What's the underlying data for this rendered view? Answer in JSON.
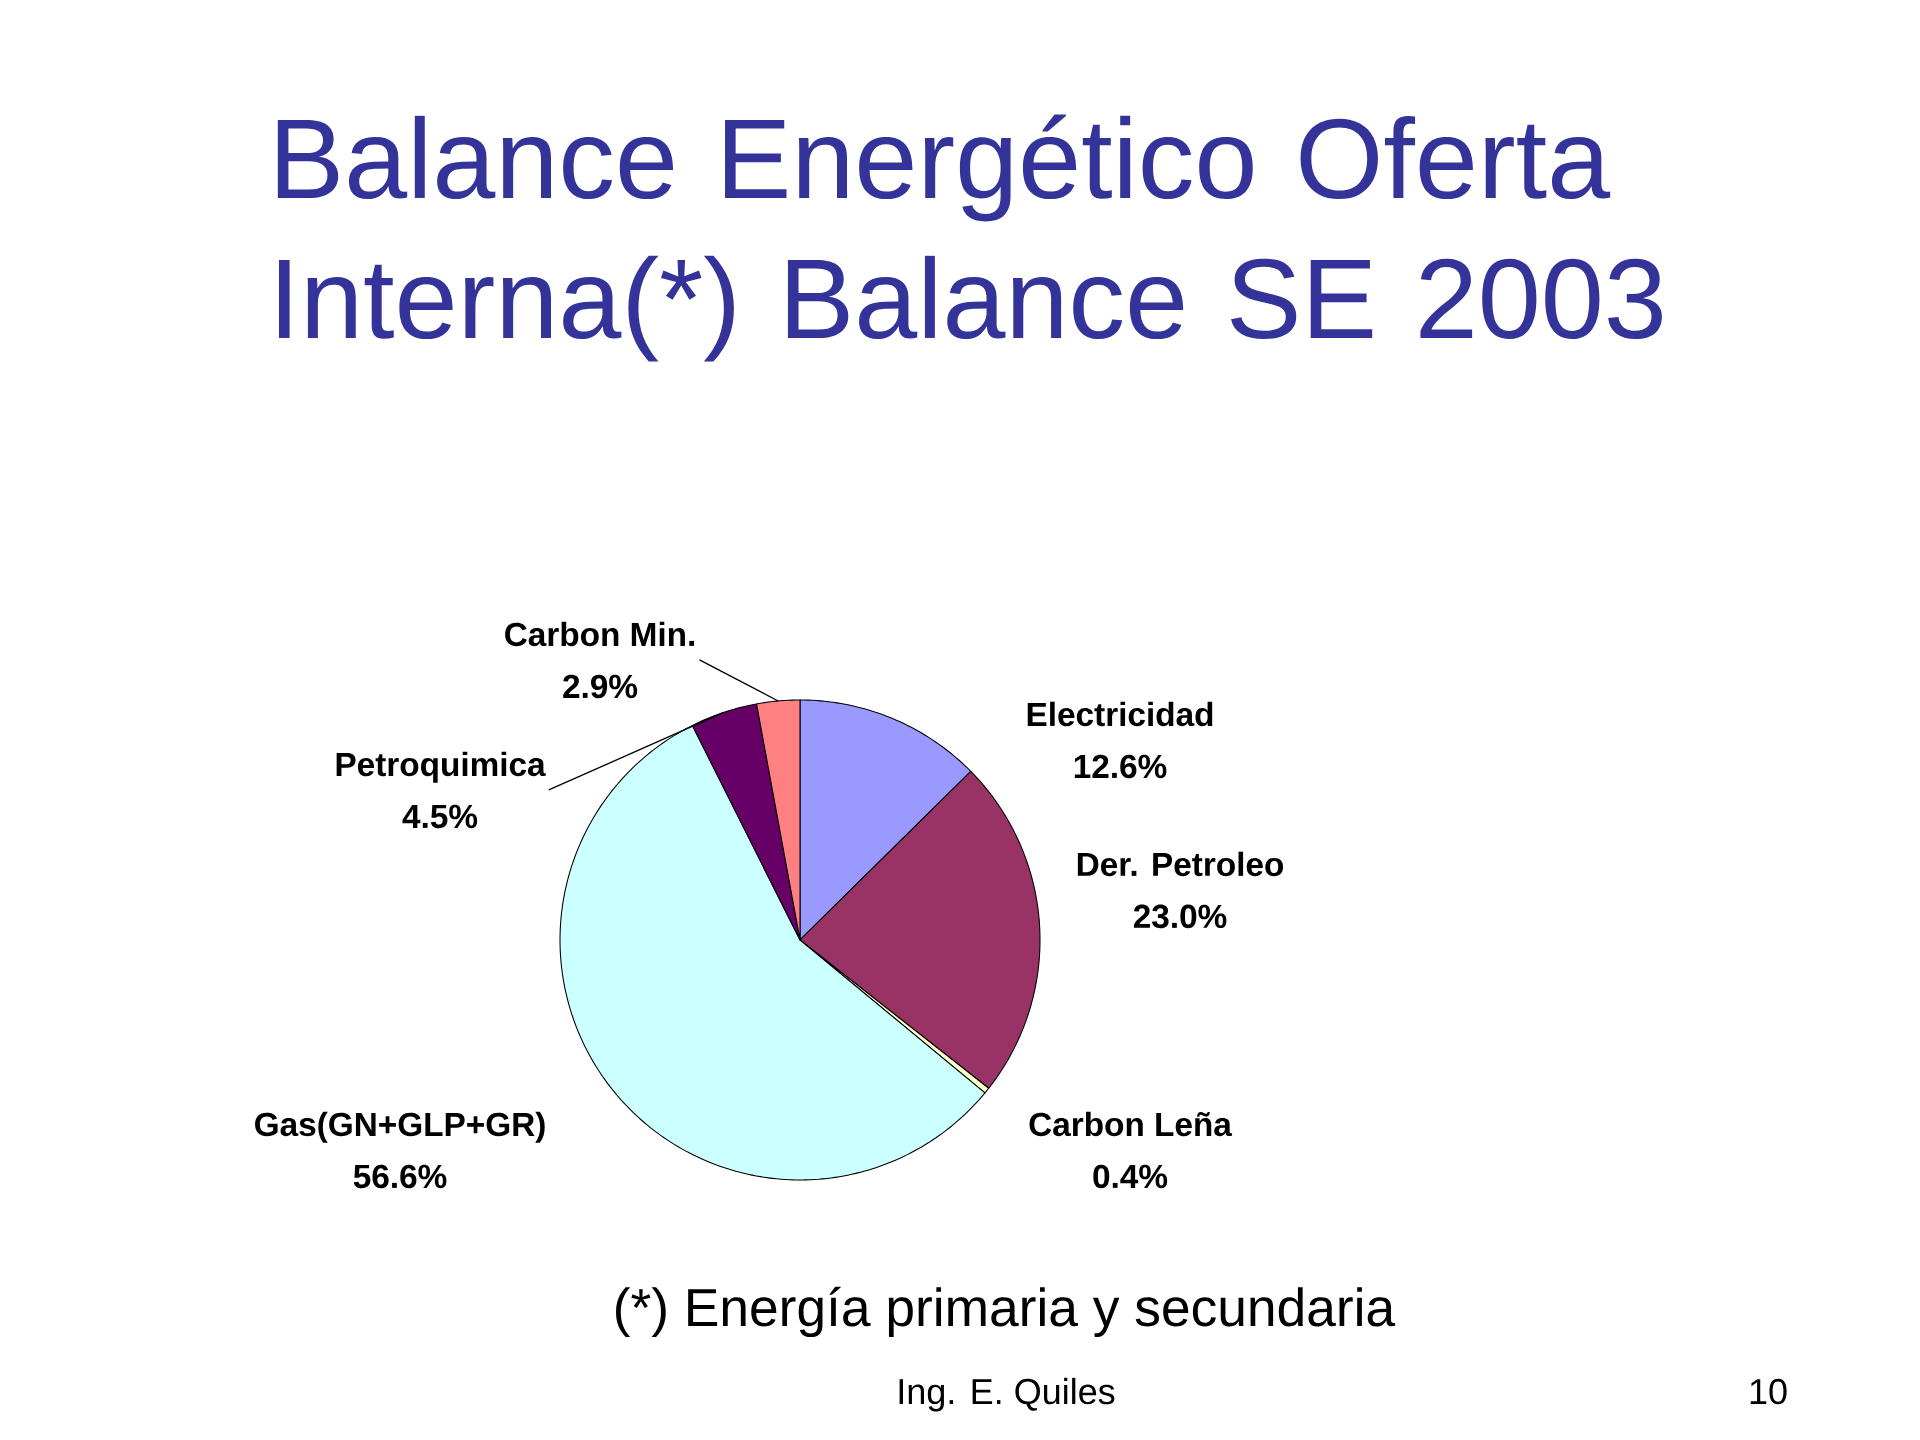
{
  "chart_data": {
    "type": "pie",
    "title": "Balance Energético Oferta Interna(*) Balance SE 2003",
    "categories": [
      "Electricidad",
      "Der. Petroleo",
      "Carbon Leña",
      "Gas(GN+GLP+GR)",
      "Petroquimica",
      "Carbon Min."
    ],
    "values": [
      12.6,
      23.0,
      0.4,
      56.6,
      4.5,
      2.9
    ],
    "value_labels": [
      "12.6%",
      "23.0%",
      "0.4%",
      "56.6%",
      "4.5%",
      "2.9%"
    ],
    "colors": [
      "#9999ff",
      "#993366",
      "#ffffcc",
      "#ccffff",
      "#660066",
      "#ff8080"
    ],
    "annotations": [
      "(*) Energía primaria y secundaria",
      "Ing. E. Quiles",
      "10"
    ]
  }
}
